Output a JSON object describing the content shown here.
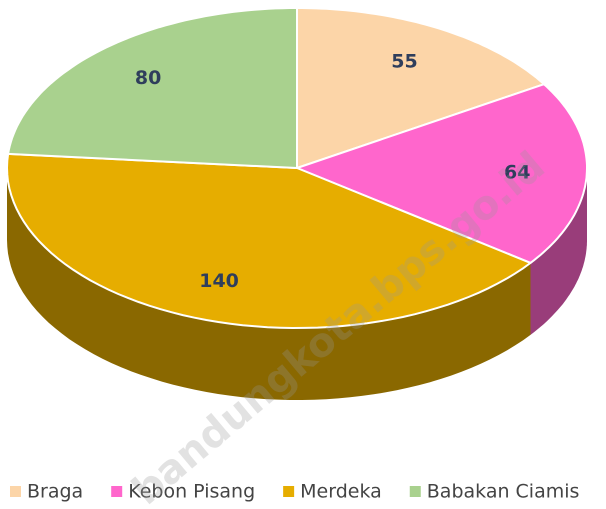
{
  "chart_data": {
    "type": "pie",
    "categories": [
      "Braga",
      "Kebon Pisang",
      "Merdeka",
      "Babakan Ciamis"
    ],
    "values": [
      55,
      64,
      140,
      80
    ],
    "colors": [
      "#fcd5a8",
      "#ff66cc",
      "#e6ad00",
      "#a9d18e"
    ],
    "legend": "bottom",
    "watermark": "bandungkota.bps.go.id"
  }
}
